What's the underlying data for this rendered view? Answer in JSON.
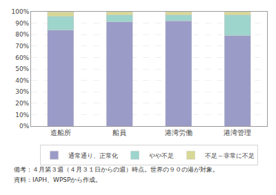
{
  "chart_data": {
    "type": "bar",
    "stacked": true,
    "categories": [
      "造船所",
      "船員",
      "港湾労働",
      "港湾管理"
    ],
    "series": [
      {
        "name": "通常通り、正常化",
        "color": "#9b9bc8",
        "values": [
          84,
          91,
          92,
          79
        ]
      },
      {
        "name": "やや不足",
        "color": "#9dd4cc",
        "values": [
          12,
          6,
          5,
          18
        ]
      },
      {
        "name": "不足～非常に不足",
        "color": "#d8d897",
        "values": [
          4,
          3,
          3,
          3
        ]
      }
    ],
    "ylim": [
      0,
      100
    ],
    "yticks": [
      {
        "value": 0,
        "label": "0%"
      },
      {
        "value": 10,
        "label": "10%"
      },
      {
        "value": 20,
        "label": "20%"
      },
      {
        "value": 30,
        "label": "30%"
      },
      {
        "value": 40,
        "label": "40%"
      },
      {
        "value": 50,
        "label": "50%"
      },
      {
        "value": 60,
        "label": "60%"
      },
      {
        "value": 70,
        "label": "70%"
      },
      {
        "value": 80,
        "label": "80%"
      },
      {
        "value": 90,
        "label": "90%"
      },
      {
        "value": 100,
        "label": "100%"
      }
    ],
    "grid": true,
    "legend": "bottom",
    "annotations": [
      "備考：４月第３週（４月３１日からの週）時点。世界の９０の港が対象。",
      "資料：IAPH、WPSPから作成。"
    ]
  }
}
